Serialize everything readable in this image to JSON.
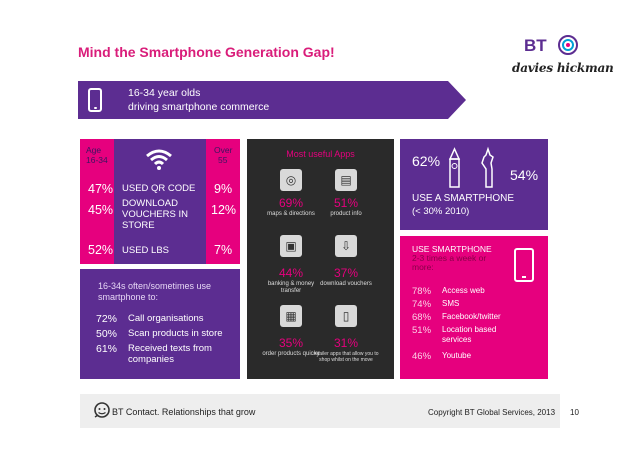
{
  "title": "Mind the Smartphone Generation Gap!",
  "logos": {
    "bt": "BT",
    "davies": "davies hickman"
  },
  "banner": {
    "line1": "16-34 year olds",
    "line2": "driving smartphone commerce"
  },
  "panel_qr": {
    "age_label_1": "Age",
    "age_label_2": "16-34",
    "over_label_1": "Over",
    "over_label_2": "55",
    "rows": [
      {
        "left": "47%",
        "text": "USED QR CODE",
        "right": "9%"
      },
      {
        "left": "45%",
        "text": "DOWNLOAD VOUCHERS IN STORE",
        "right": "12%"
      },
      {
        "left": "52%",
        "text": "USED LBS",
        "right": "7%"
      }
    ],
    "icon": "wifi-icon"
  },
  "panel_uses": {
    "heading": "16-34s often/sometimes use smartphone to:",
    "rows": [
      {
        "value": "72%",
        "text": "Call organisations"
      },
      {
        "value": "50%",
        "text": "Scan products in store"
      },
      {
        "value": "61%",
        "text": "Received texts from companies"
      }
    ]
  },
  "panel_apps": {
    "heading": "Most useful Apps",
    "apps": [
      {
        "pct": "69%",
        "desc": "maps & directions",
        "icon": "compass-icon"
      },
      {
        "pct": "51%",
        "desc": "product info",
        "icon": "document-icon"
      },
      {
        "pct": "44%",
        "desc": "banking & money transfer",
        "icon": "money-icon"
      },
      {
        "pct": "37%",
        "desc": "download vouchers",
        "icon": "download-icon"
      },
      {
        "pct": "35%",
        "desc": "order products quicky",
        "icon": "basket-icon"
      },
      {
        "pct": "31%",
        "desc": "retailer apps that allow you to shop whilst on the move",
        "icon": "phone-app-icon"
      }
    ]
  },
  "panel_smartphone": {
    "pct_young": "62%",
    "pct_old": "54%",
    "label": "USE A SMARTPHONE",
    "sub": "(< 30% 2010)"
  },
  "panel_usage": {
    "heading": "USE SMARTPHONE",
    "subheading": "2-3 times a week or more:",
    "rows": [
      {
        "value": "78%",
        "text": "Access web"
      },
      {
        "value": "74%",
        "text": "SMS"
      },
      {
        "value": "68%",
        "text": "Facebook/twitter"
      },
      {
        "value": "51%",
        "text": "Location based services"
      },
      {
        "value": "46%",
        "text": "Youtube"
      }
    ]
  },
  "footer": {
    "tagline": "BT Contact. Relationships that grow",
    "copyright": "Copyright BT Global Services, 2013",
    "page": "10"
  },
  "colors": {
    "purple": "#5c2d91",
    "pink": "#e6007e",
    "dark": "#2a2a2a"
  }
}
